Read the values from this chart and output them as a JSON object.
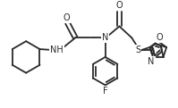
{
  "bg_color": "#ffffff",
  "line_color": "#2a2a2a",
  "line_width": 1.3,
  "font_size": 7.0,
  "figsize": [
    1.99,
    1.21
  ],
  "dpi": 100,
  "xlim": [
    0,
    199
  ],
  "ylim": [
    0,
    121
  ]
}
